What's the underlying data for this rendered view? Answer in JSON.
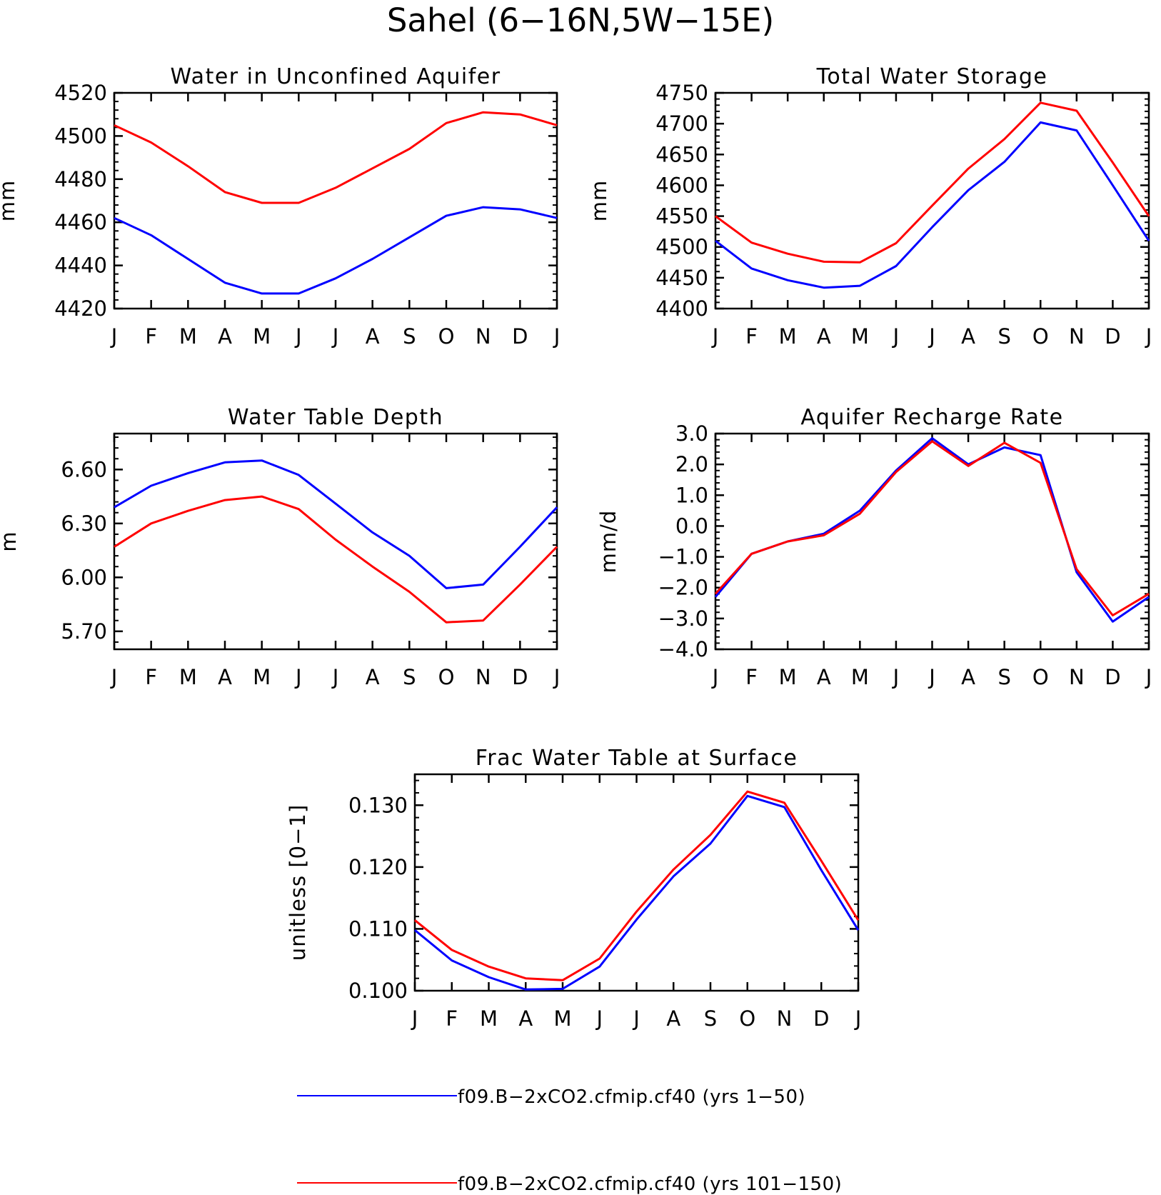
{
  "title": "Sahel (6−16N,5W−15E)",
  "series_colors": {
    "yrs_1_50": "#0000ff",
    "yrs_101_150": "#ff0000"
  },
  "legend": [
    {
      "label": "f09.B−2xCO2.cfmip.cf40 (yrs 1−50)",
      "color": "#0000ff"
    },
    {
      "label": "f09.B−2xCO2.cfmip.cf40 (yrs 101−150)",
      "color": "#ff0000"
    }
  ],
  "chart_data": [
    {
      "type": "line",
      "title": "Water in Unconfined Aquifer",
      "ylabel": "mm",
      "categories": [
        "J",
        "F",
        "M",
        "A",
        "M",
        "J",
        "J",
        "A",
        "S",
        "O",
        "N",
        "D",
        "J"
      ],
      "ylim": [
        4420,
        4520
      ],
      "yticks": [
        4420,
        4440,
        4460,
        4480,
        4500,
        4520
      ],
      "ytick_labels": [
        "4420",
        "4440",
        "4460",
        "4480",
        "4500",
        "4520"
      ],
      "series": [
        {
          "values": [
            4462,
            4454,
            4443,
            4432,
            4427,
            4427,
            4434,
            4443,
            4453,
            4463,
            4467,
            4466,
            4462
          ],
          "color": "#0000ff"
        },
        {
          "values": [
            4505,
            4497,
            4486,
            4474,
            4469,
            4469,
            4476,
            4485,
            4494,
            4506,
            4511,
            4510,
            4505
          ],
          "color": "#ff0000"
        }
      ]
    },
    {
      "type": "line",
      "title": "Total Water Storage",
      "ylabel": "mm",
      "categories": [
        "J",
        "F",
        "M",
        "A",
        "M",
        "J",
        "J",
        "A",
        "S",
        "O",
        "N",
        "D",
        "J"
      ],
      "ylim": [
        4400,
        4750
      ],
      "yticks": [
        4400,
        4450,
        4500,
        4550,
        4600,
        4650,
        4700,
        4750
      ],
      "ytick_labels": [
        "4400",
        "4450",
        "4500",
        "4550",
        "4600",
        "4650",
        "4700",
        "4750"
      ],
      "series": [
        {
          "values": [
            4510,
            4465,
            4446,
            4434,
            4437,
            4469,
            4532,
            4592,
            4638,
            4702,
            4689,
            4600,
            4510
          ],
          "color": "#0000ff"
        },
        {
          "values": [
            4550,
            4507,
            4489,
            4476,
            4475,
            4506,
            4567,
            4627,
            4675,
            4734,
            4721,
            4637,
            4550
          ],
          "color": "#ff0000"
        }
      ]
    },
    {
      "type": "line",
      "title": "Water Table Depth",
      "ylabel": "m",
      "categories": [
        "J",
        "F",
        "M",
        "A",
        "M",
        "J",
        "J",
        "A",
        "S",
        "O",
        "N",
        "D",
        "J"
      ],
      "ylim": [
        5.6,
        6.8
      ],
      "yticks": [
        5.7,
        6.0,
        6.3,
        6.6
      ],
      "ytick_labels": [
        "5.70",
        "6.00",
        "6.30",
        "6.60"
      ],
      "series": [
        {
          "values": [
            6.39,
            6.51,
            6.58,
            6.64,
            6.65,
            6.57,
            6.41,
            6.25,
            6.12,
            5.94,
            5.96,
            6.17,
            6.39
          ],
          "color": "#0000ff"
        },
        {
          "values": [
            6.17,
            6.3,
            6.37,
            6.43,
            6.45,
            6.38,
            6.21,
            6.06,
            5.92,
            5.75,
            5.76,
            5.96,
            6.17
          ],
          "color": "#ff0000"
        }
      ]
    },
    {
      "type": "line",
      "title": "Aquifer Recharge Rate",
      "ylabel": "mm/d",
      "categories": [
        "J",
        "F",
        "M",
        "A",
        "M",
        "J",
        "J",
        "A",
        "S",
        "O",
        "N",
        "D",
        "J"
      ],
      "ylim": [
        -4.0,
        3.0
      ],
      "yticks": [
        -4.0,
        -3.0,
        -2.0,
        -1.0,
        0.0,
        1.0,
        2.0,
        3.0
      ],
      "ytick_labels": [
        "−4.0",
        "−3.0",
        "−2.0",
        "−1.0",
        "0.0",
        "1.0",
        "2.0",
        "3.0"
      ],
      "series": [
        {
          "values": [
            -2.3,
            -0.9,
            -0.5,
            -0.25,
            0.5,
            1.8,
            2.85,
            2.0,
            2.55,
            2.3,
            -1.5,
            -3.1,
            -2.3
          ],
          "color": "#0000ff"
        },
        {
          "values": [
            -2.2,
            -0.9,
            -0.5,
            -0.3,
            0.4,
            1.75,
            2.75,
            1.95,
            2.7,
            2.05,
            -1.4,
            -2.9,
            -2.2
          ],
          "color": "#ff0000"
        }
      ]
    },
    {
      "type": "line",
      "title": "Frac Water Table at Surface",
      "ylabel": "unitless [0−1]",
      "categories": [
        "J",
        "F",
        "M",
        "A",
        "M",
        "J",
        "J",
        "A",
        "S",
        "O",
        "N",
        "D",
        "J"
      ],
      "ylim": [
        0.1,
        0.135
      ],
      "yticks": [
        0.1,
        0.11,
        0.12,
        0.13
      ],
      "ytick_labels": [
        "0.100",
        "0.110",
        "0.120",
        "0.130"
      ],
      "series": [
        {
          "values": [
            0.1098,
            0.1049,
            0.1022,
            0.1002,
            0.1003,
            0.1039,
            0.1115,
            0.1185,
            0.1238,
            0.1315,
            0.1297,
            0.1195,
            0.1098
          ],
          "color": "#0000ff"
        },
        {
          "values": [
            0.1114,
            0.1066,
            0.1039,
            0.102,
            0.1017,
            0.1052,
            0.1128,
            0.1196,
            0.1252,
            0.1322,
            0.1304,
            0.121,
            0.1114
          ],
          "color": "#ff0000"
        }
      ]
    }
  ]
}
